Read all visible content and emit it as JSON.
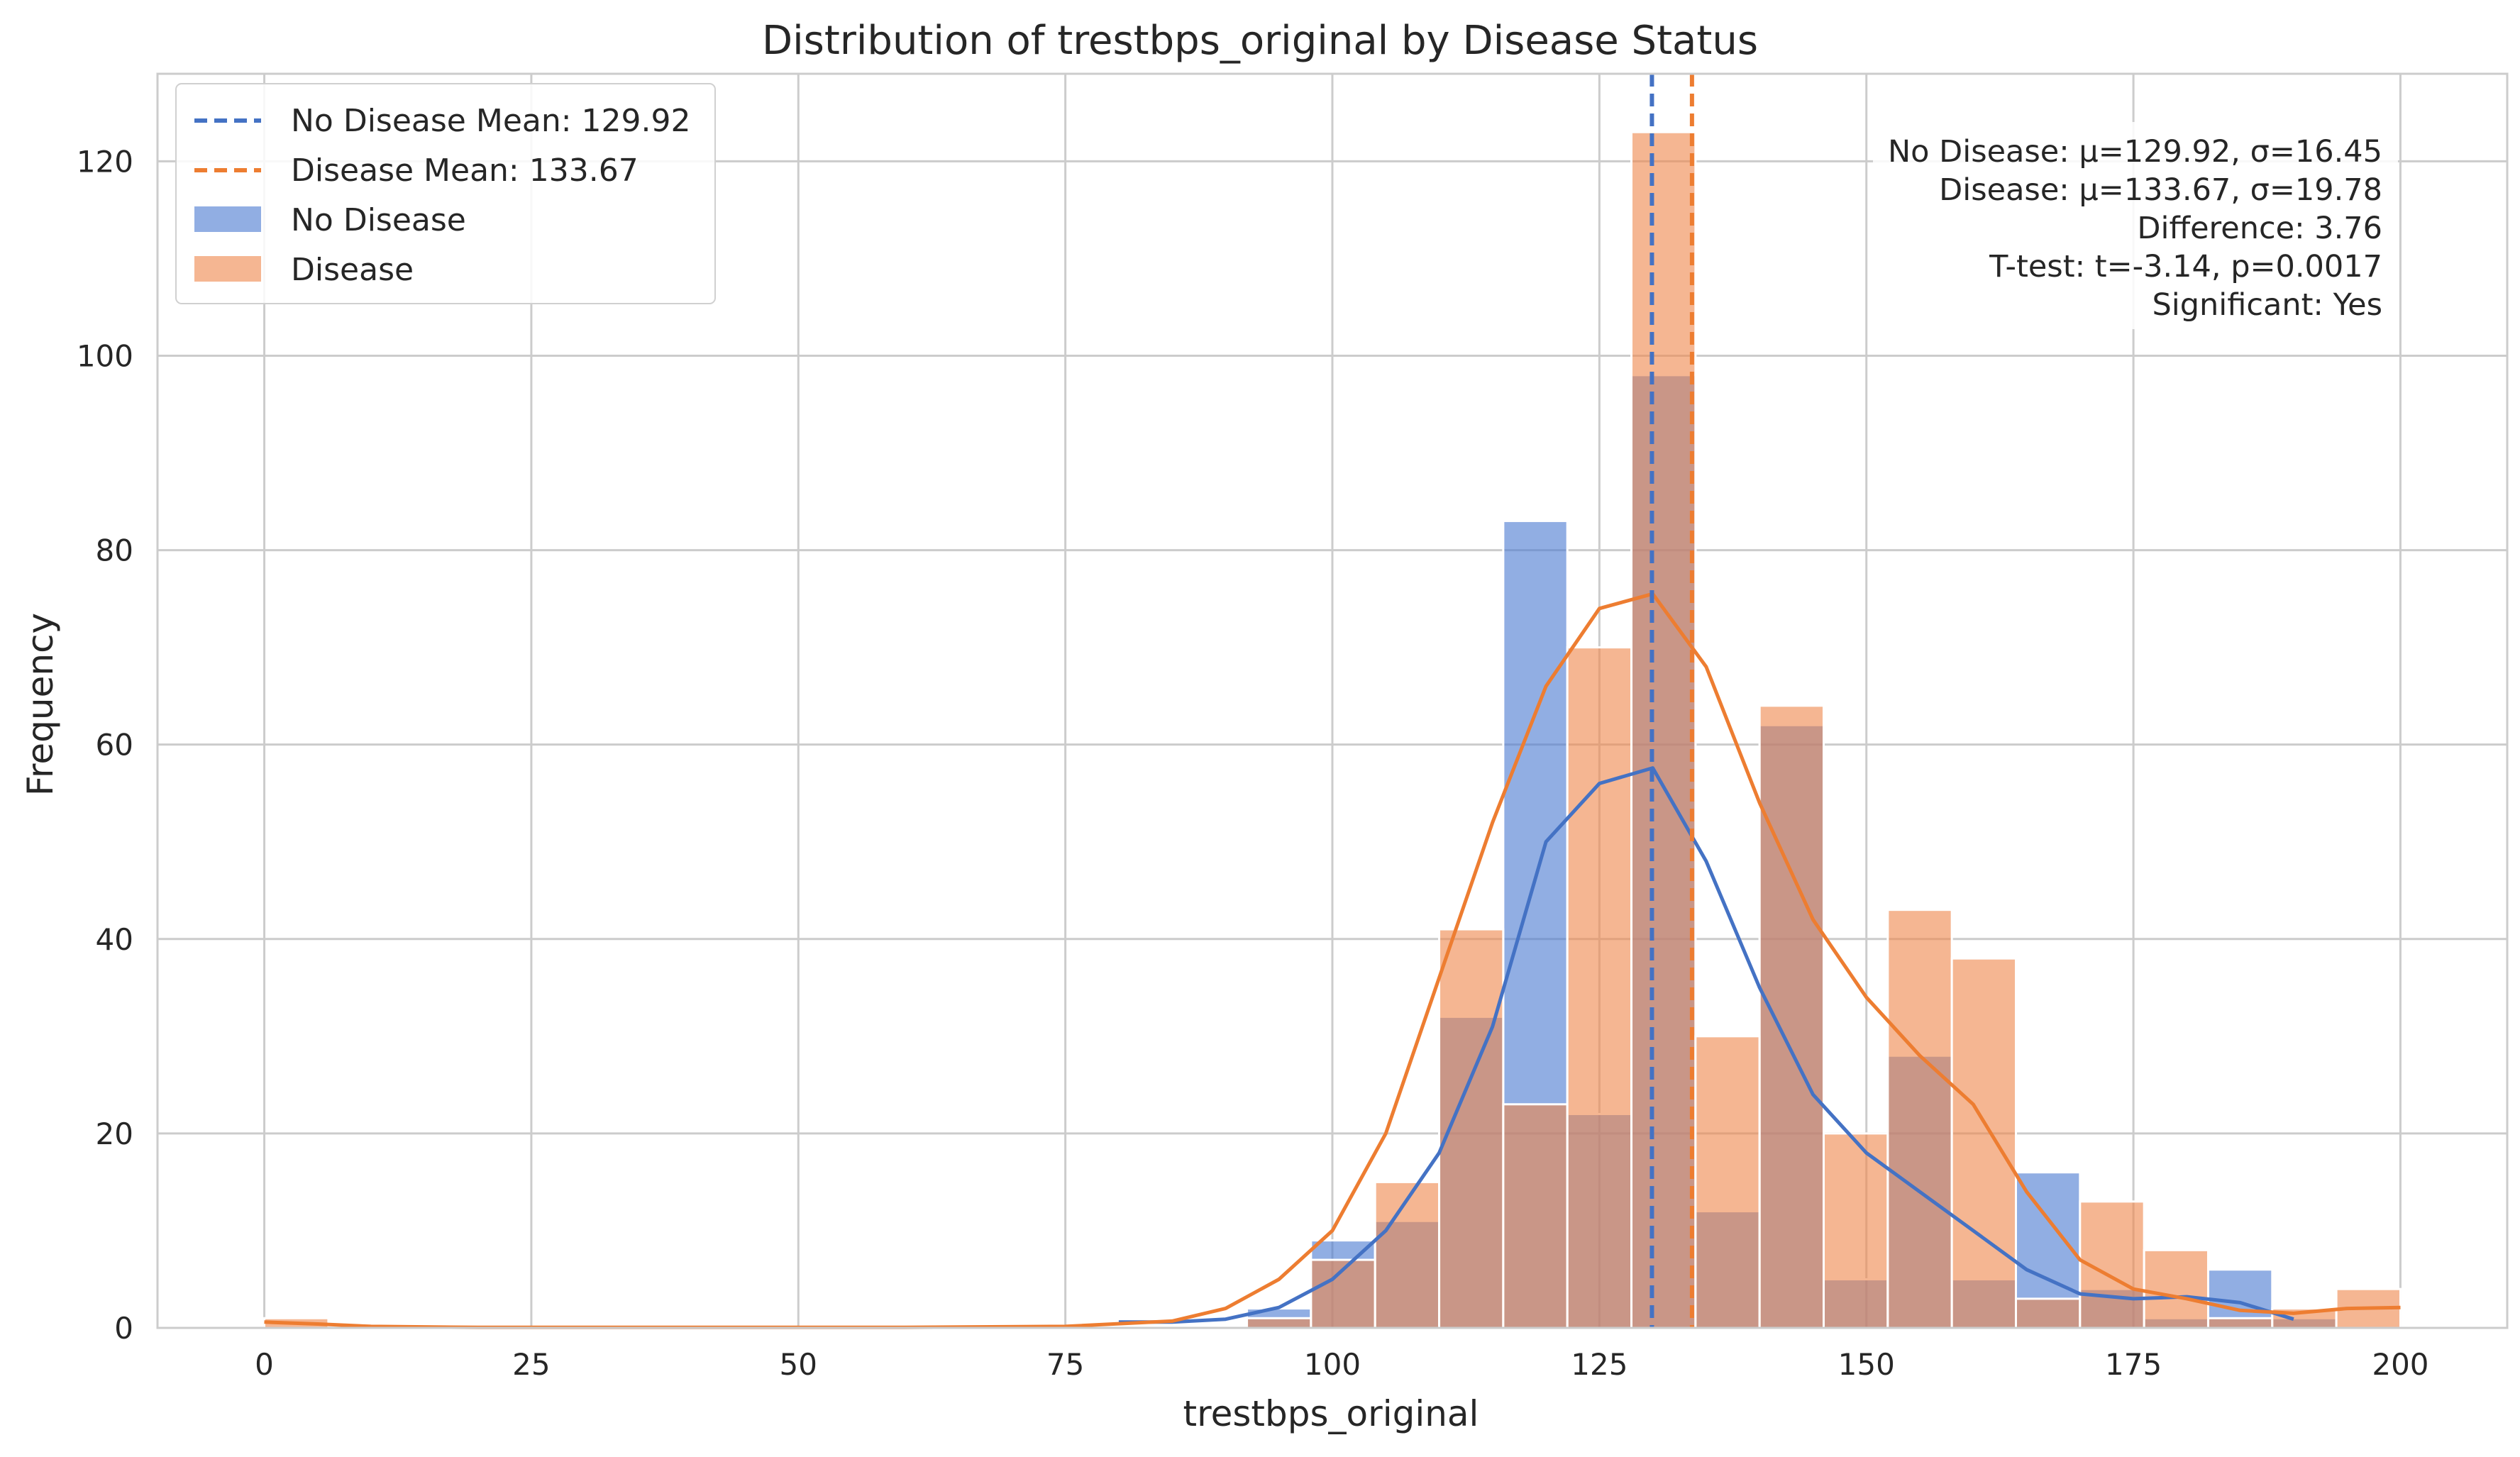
{
  "chart_data": {
    "type": "bar",
    "title": "Distribution of trestbps_original by Disease Status",
    "xlabel": "trestbps_original",
    "ylabel": "Frequency",
    "xlim": [
      -10,
      210
    ],
    "ylim": [
      0,
      129
    ],
    "xticks": [
      0,
      25,
      50,
      75,
      100,
      125,
      150,
      175,
      200
    ],
    "yticks": [
      0,
      20,
      40,
      60,
      80,
      100,
      120
    ],
    "grid": true,
    "legend_position": "top-left",
    "legend": [
      {
        "label": "No Disease Mean: 129.92",
        "kind": "dashed-line",
        "series": "no_disease"
      },
      {
        "label": "Disease Mean: 133.67",
        "kind": "dashed-line",
        "series": "disease"
      },
      {
        "label": "No Disease",
        "kind": "patch",
        "series": "no_disease"
      },
      {
        "label": "Disease",
        "kind": "patch",
        "series": "disease"
      }
    ],
    "means": {
      "no_disease": 129.92,
      "disease": 133.67
    },
    "series": [
      {
        "name": "No Disease",
        "key": "no_disease",
        "color": "#4878d0",
        "bins": [
          {
            "x0": 80,
            "x1": 86,
            "count": 0
          },
          {
            "x0": 92,
            "x1": 98,
            "count": 2
          },
          {
            "x0": 98,
            "x1": 104,
            "count": 9
          },
          {
            "x0": 104,
            "x1": 110,
            "count": 11
          },
          {
            "x0": 110,
            "x1": 116,
            "count": 32
          },
          {
            "x0": 116,
            "x1": 122,
            "count": 83
          },
          {
            "x0": 122,
            "x1": 128,
            "count": 22
          },
          {
            "x0": 128,
            "x1": 134,
            "count": 98
          },
          {
            "x0": 134,
            "x1": 140,
            "count": 12
          },
          {
            "x0": 140,
            "x1": 146,
            "count": 62
          },
          {
            "x0": 146,
            "x1": 152,
            "count": 5
          },
          {
            "x0": 152,
            "x1": 158,
            "count": 28
          },
          {
            "x0": 158,
            "x1": 164,
            "count": 5
          },
          {
            "x0": 164,
            "x1": 170,
            "count": 16
          },
          {
            "x0": 170,
            "x1": 176,
            "count": 4
          },
          {
            "x0": 176,
            "x1": 182,
            "count": 1
          },
          {
            "x0": 182,
            "x1": 188,
            "count": 6
          },
          {
            "x0": 188,
            "x1": 194,
            "count": 1
          }
        ],
        "kde": [
          [
            80,
            0.6
          ],
          [
            85,
            0.6
          ],
          [
            90,
            0.9
          ],
          [
            95,
            2.1
          ],
          [
            100,
            5
          ],
          [
            105,
            10
          ],
          [
            110,
            18
          ],
          [
            115,
            31
          ],
          [
            120,
            50
          ],
          [
            125,
            56
          ],
          [
            130,
            57.6
          ],
          [
            135,
            48
          ],
          [
            140,
            35
          ],
          [
            145,
            24
          ],
          [
            150,
            18
          ],
          [
            155,
            14
          ],
          [
            160,
            10
          ],
          [
            165,
            6
          ],
          [
            170,
            3.5
          ],
          [
            175,
            3.0
          ],
          [
            180,
            3.2
          ],
          [
            185,
            2.6
          ],
          [
            190,
            0.9
          ]
        ]
      },
      {
        "name": "Disease",
        "key": "disease",
        "color": "#ee854a",
        "bins": [
          {
            "x0": 0,
            "x1": 6,
            "count": 1
          },
          {
            "x0": 92,
            "x1": 98,
            "count": 1
          },
          {
            "x0": 98,
            "x1": 104,
            "count": 7
          },
          {
            "x0": 104,
            "x1": 110,
            "count": 15
          },
          {
            "x0": 110,
            "x1": 116,
            "count": 41
          },
          {
            "x0": 116,
            "x1": 122,
            "count": 23
          },
          {
            "x0": 122,
            "x1": 128,
            "count": 70
          },
          {
            "x0": 128,
            "x1": 134,
            "count": 123
          },
          {
            "x0": 134,
            "x1": 140,
            "count": 30
          },
          {
            "x0": 140,
            "x1": 146,
            "count": 64
          },
          {
            "x0": 146,
            "x1": 152,
            "count": 20
          },
          {
            "x0": 152,
            "x1": 158,
            "count": 43
          },
          {
            "x0": 158,
            "x1": 164,
            "count": 38
          },
          {
            "x0": 164,
            "x1": 170,
            "count": 3
          },
          {
            "x0": 170,
            "x1": 176,
            "count": 13
          },
          {
            "x0": 176,
            "x1": 182,
            "count": 8
          },
          {
            "x0": 182,
            "x1": 188,
            "count": 1
          },
          {
            "x0": 188,
            "x1": 194,
            "count": 2
          },
          {
            "x0": 194,
            "x1": 200,
            "count": 4
          }
        ],
        "kde": [
          [
            0,
            0.6
          ],
          [
            5,
            0.4
          ],
          [
            10,
            0.15
          ],
          [
            20,
            0.05
          ],
          [
            40,
            0.05
          ],
          [
            60,
            0.05
          ],
          [
            75,
            0.15
          ],
          [
            85,
            0.7
          ],
          [
            90,
            2
          ],
          [
            95,
            5
          ],
          [
            100,
            10
          ],
          [
            105,
            20
          ],
          [
            110,
            36
          ],
          [
            115,
            52
          ],
          [
            120,
            66
          ],
          [
            125,
            74
          ],
          [
            130,
            75.5
          ],
          [
            135,
            68
          ],
          [
            140,
            54
          ],
          [
            145,
            42
          ],
          [
            150,
            34
          ],
          [
            155,
            28
          ],
          [
            160,
            23
          ],
          [
            165,
            14
          ],
          [
            170,
            7
          ],
          [
            175,
            4
          ],
          [
            180,
            3
          ],
          [
            185,
            1.8
          ],
          [
            190,
            1.5
          ],
          [
            195,
            2
          ],
          [
            200,
            2.1
          ]
        ]
      }
    ],
    "stats_box_position": "top-right",
    "stats_box": [
      "No Disease: μ=129.92, σ=16.45",
      "Disease: μ=133.67, σ=19.78",
      "Difference: 3.76",
      "T-test: t=-3.14, p=0.0017",
      "Significant: Yes"
    ]
  }
}
